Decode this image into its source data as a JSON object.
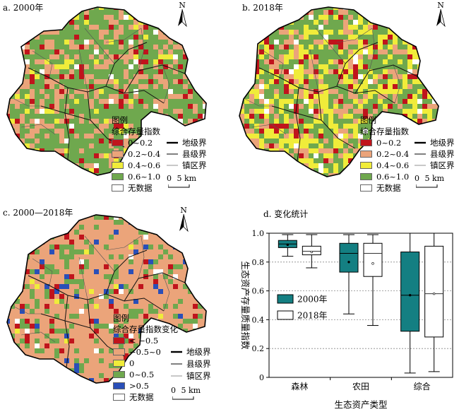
{
  "panels": [
    {
      "title": "a. 2000年",
      "north": "N",
      "legend_title": "图例",
      "legend_subtitle": "综合存量指数",
      "classes": [
        {
          "label": "0~0.2",
          "color": "#c0141c"
        },
        {
          "label": "0.2~0.4",
          "color": "#eba47a"
        },
        {
          "label": "0.4~0.6",
          "color": "#f0ec3a"
        },
        {
          "label": "0.6~1.0",
          "color": "#6fa84e"
        },
        {
          "label": "无数据",
          "color": "#ffffff"
        }
      ],
      "base_color": "#6fa84e",
      "cell_colors": [
        "#eba47a",
        "#c0141c",
        "#f0ec3a",
        "#ffffff"
      ]
    },
    {
      "title": "b. 2018年",
      "north": "N",
      "legend_title": "图例",
      "legend_subtitle": "综合存量指数",
      "classes": [
        {
          "label": "0~0.2",
          "color": "#c0141c"
        },
        {
          "label": "0.2~0.4",
          "color": "#eba47a"
        },
        {
          "label": "0.4~0.6",
          "color": "#f0ec3a"
        },
        {
          "label": "0.6~1.0",
          "color": "#6fa84e"
        },
        {
          "label": "无数据",
          "color": "#ffffff"
        }
      ],
      "base_color": "#6fa84e",
      "cell_colors": [
        "#f0ec3a",
        "#eba47a",
        "#c0141c",
        "#ffffff"
      ]
    },
    {
      "title": "c. 2000—2018年",
      "north": "N",
      "legend_title": "图例",
      "legend_subtitle": "综合存量指数变化",
      "classes": [
        {
          "label": "< −0.5",
          "color": "#c0141c"
        },
        {
          "label": "−0.5~0",
          "color": "#eba47a"
        },
        {
          "label": "0",
          "color": "#f0ec3a"
        },
        {
          "label": "0~0.5",
          "color": "#6fa84e"
        },
        {
          "label": ">0.5",
          "color": "#2a4fb8"
        },
        {
          "label": "无数据",
          "color": "#ffffff"
        }
      ],
      "base_color": "#eba47a",
      "cell_colors": [
        "#6fa84e",
        "#c0141c",
        "#2a4fb8",
        "#ffffff",
        "#f0ec3a"
      ]
    }
  ],
  "boundaries": {
    "prefecture": "地级界",
    "county": "县级界",
    "town": "镇区界"
  },
  "scale_label": "5 km",
  "scale_zero": "0",
  "chart_panel_title": "d. 变化统计",
  "chart_data": {
    "type": "boxplot",
    "xlabel": "生态资产类型",
    "ylabel": "生态资产存量质量指数",
    "ylim": [
      0,
      1.0
    ],
    "yticks": [
      "0",
      "0.2",
      "0.4",
      "0.6",
      "0.8",
      "1.0"
    ],
    "categories": [
      "森林",
      "农田",
      "综合"
    ],
    "series": [
      {
        "name": "2000年",
        "color": "#147f82",
        "boxes": [
          {
            "min": 0.84,
            "q1": 0.9,
            "median": 0.925,
            "q3": 0.95,
            "max": 0.99,
            "mean": 0.92
          },
          {
            "min": 0.44,
            "q1": 0.73,
            "median": 0.86,
            "q3": 0.93,
            "max": 0.99,
            "mean": 0.8
          },
          {
            "min": 0.03,
            "q1": 0.32,
            "median": 0.57,
            "q3": 0.87,
            "max": 1.0,
            "mean": 0.57
          }
        ]
      },
      {
        "name": "2018年",
        "color": "#ffffff",
        "boxes": [
          {
            "min": 0.76,
            "q1": 0.85,
            "median": 0.875,
            "q3": 0.91,
            "max": 0.99,
            "mean": 0.87
          },
          {
            "min": 0.36,
            "q1": 0.7,
            "median": 0.86,
            "q3": 0.93,
            "max": 0.99,
            "mean": 0.79
          },
          {
            "min": 0.04,
            "q1": 0.28,
            "median": 0.58,
            "q3": 0.91,
            "max": 1.0,
            "mean": 0.58
          }
        ]
      }
    ],
    "hlines": [
      0.2,
      0.4,
      0.6,
      0.8
    ],
    "grid_style": "dotted",
    "legend_position": "left-middle"
  }
}
